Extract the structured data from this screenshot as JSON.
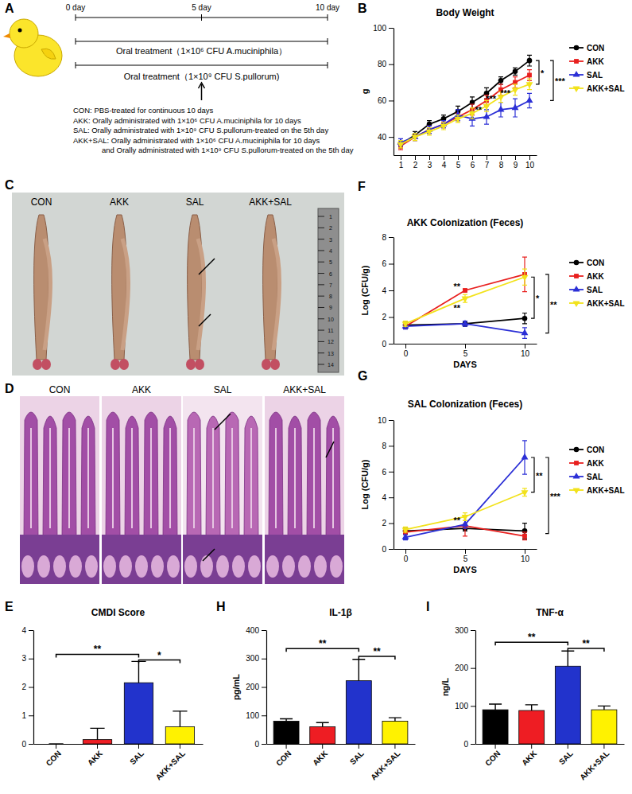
{
  "panel_labels": [
    "A",
    "B",
    "C",
    "D",
    "E",
    "F",
    "G",
    "H",
    "I"
  ],
  "diagram": {
    "timeline": [
      {
        "value": 0,
        "label": "0 day"
      },
      {
        "value": 5,
        "label": "5 day"
      },
      {
        "value": 10,
        "label": "10 day"
      }
    ],
    "treatments": [
      "Oral treatment（1×10⁶ CFU A.muciniphila）",
      "Oral treatment（1×10⁹ CFU S.pullorum)"
    ],
    "groups": [
      [
        "CON: PBS-treated for continuous 10 days"
      ],
      [
        "AKK: Orally administrated with 1×10⁶ CFU A.muciniphila for 10 days"
      ],
      [
        "SAL: Orally administrated with 1×10⁹ CFU S.pullorum-treated on the 5th day"
      ],
      [
        "AKK+SAL: Orally administrated with 1×10⁶ CFU A.muciniphila for 10 days",
        "and Orally administrated with 1×10⁹ CFU S.pullorum-treated on the 5th day"
      ]
    ]
  },
  "photos": {
    "intestine": {
      "labels": [
        "CON",
        "AKK",
        "SAL",
        "AKK+SAL"
      ],
      "ruler_marks": [
        1,
        2,
        3,
        4,
        5,
        6,
        7,
        8,
        9,
        10,
        11,
        12,
        13,
        14
      ]
    },
    "histology": {
      "labels": [
        "CON",
        "AKK",
        "SAL",
        "AKK+SAL"
      ]
    }
  },
  "chart_data": [
    {
      "type": "line",
      "title": "Body Weight",
      "y_label": "g",
      "x": [
        1,
        2,
        3,
        4,
        5,
        6,
        7,
        8,
        9,
        10
      ],
      "xlim": [
        0.5,
        10.5
      ],
      "xticks": [
        1,
        2,
        3,
        4,
        5,
        6,
        7,
        8,
        9,
        10
      ],
      "ylim": [
        30,
        100
      ],
      "yticks": [
        40,
        60,
        80,
        100
      ],
      "legend": "right",
      "series": [
        {
          "name": "CON",
          "color": "#000000",
          "marker": "circle",
          "values": [
            36,
            41,
            47,
            50,
            54,
            59,
            64,
            71,
            76,
            82
          ],
          "errors": [
            2,
            2,
            2,
            2,
            3,
            3,
            3,
            2,
            2,
            3
          ]
        },
        {
          "name": "AKK",
          "color": "#e8201f",
          "marker": "square",
          "values": [
            35,
            40,
            44,
            47,
            51,
            55,
            60,
            66,
            70,
            74
          ],
          "errors": [
            2,
            2,
            2,
            2,
            2,
            3,
            3,
            3,
            3,
            3
          ]
        },
        {
          "name": "SAL",
          "color": "#2b2fd6",
          "marker": "triangle",
          "values": [
            37,
            40,
            44,
            47,
            52,
            50,
            51,
            55,
            56,
            60
          ],
          "errors": [
            2,
            2,
            2,
            2,
            3,
            4,
            4,
            4,
            5,
            4
          ]
        },
        {
          "name": "AKK+SAL",
          "color": "#f2e21b",
          "marker": "triangle-down",
          "values": [
            36,
            40,
            43,
            46,
            50,
            53,
            57,
            62,
            66,
            69
          ],
          "errors": [
            2,
            2,
            2,
            2,
            2,
            3,
            3,
            3,
            3,
            3
          ]
        }
      ],
      "annotations": [
        {
          "text": "**",
          "x": 7,
          "y": 55
        },
        {
          "text": "***",
          "x": 8,
          "y": 61
        },
        {
          "text": "***",
          "x": 9,
          "y": 64
        },
        {
          "text": "*",
          "x": 10,
          "y_from": 82,
          "y_to": 69
        },
        {
          "text": "***",
          "x": 10,
          "y_from": 82,
          "y_to": 60
        }
      ]
    },
    {
      "type": "bar",
      "title": "CMDI Score",
      "categories": [
        "CON",
        "AKK",
        "SAL",
        "AKK+SAL"
      ],
      "values": [
        0,
        0.15,
        2.15,
        0.6
      ],
      "errors": [
        0,
        0.4,
        0.75,
        0.55
      ],
      "colors": [
        "#000000",
        "#ee1d23",
        "#2233cc",
        "#fff200"
      ],
      "ylim": [
        0,
        4
      ],
      "yticks": [
        0,
        1,
        2,
        3,
        4
      ],
      "annotations": [
        {
          "text": "**",
          "from": 0,
          "to": 2,
          "y": 3.15
        },
        {
          "text": "*",
          "from": 2,
          "to": 3,
          "y": 2.95
        }
      ]
    },
    {
      "type": "line",
      "title": "AKK Colonization (Feces)",
      "y_label": "Log (CFU/g)",
      "x_label": "DAYS",
      "x": [
        0,
        5,
        10
      ],
      "xlim": [
        -1,
        11
      ],
      "xticks": [
        0,
        5,
        10
      ],
      "ylim": [
        0,
        8
      ],
      "yticks": [
        0,
        2,
        4,
        6,
        8
      ],
      "legend": "right",
      "series": [
        {
          "name": "CON",
          "color": "#000000",
          "marker": "circle",
          "values": [
            1.4,
            1.5,
            1.9
          ],
          "errors": [
            0.2,
            0.2,
            0.4
          ]
        },
        {
          "name": "AKK",
          "color": "#e8201f",
          "marker": "square",
          "values": [
            1.3,
            4.0,
            5.2
          ],
          "errors": [
            0.1,
            0.1,
            1.3
          ]
        },
        {
          "name": "SAL",
          "color": "#2b2fd6",
          "marker": "triangle",
          "values": [
            1.3,
            1.5,
            0.8
          ],
          "errors": [
            0.2,
            0.2,
            0.4
          ]
        },
        {
          "name": "AKK+SAL",
          "color": "#f2e21b",
          "marker": "triangle-down",
          "values": [
            1.5,
            3.4,
            5.0
          ],
          "errors": [
            0.2,
            0.3,
            0.6
          ]
        }
      ],
      "annotations": [
        {
          "text": "**",
          "x": 5,
          "y": 4.3
        },
        {
          "text": "**",
          "x": 5,
          "y": 2.7
        },
        {
          "text": "*",
          "x": 10,
          "y_from": 5.0,
          "y_to": 1.9
        },
        {
          "text": "**",
          "x": 10,
          "y_from": 5.2,
          "y_to": 0.8
        }
      ]
    },
    {
      "type": "line",
      "title": "SAL Colonization (Feces)",
      "y_label": "Log (CFU/g)",
      "x_label": "DAYS",
      "x": [
        0,
        5,
        10
      ],
      "xlim": [
        -1,
        11
      ],
      "xticks": [
        0,
        5,
        10
      ],
      "ylim": [
        0,
        10
      ],
      "yticks": [
        0,
        2,
        4,
        6,
        8,
        10
      ],
      "legend": "right",
      "series": [
        {
          "name": "CON",
          "color": "#000000",
          "marker": "circle",
          "values": [
            1.4,
            1.6,
            1.4
          ],
          "errors": [
            0.2,
            0.2,
            0.6
          ]
        },
        {
          "name": "AKK",
          "color": "#e8201f",
          "marker": "square",
          "values": [
            1.3,
            1.8,
            1.0
          ],
          "errors": [
            0.2,
            0.8,
            0.3
          ]
        },
        {
          "name": "SAL",
          "color": "#2b2fd6",
          "marker": "triangle",
          "values": [
            0.9,
            1.9,
            7.1
          ],
          "errors": [
            0.2,
            0.3,
            1.3
          ]
        },
        {
          "name": "AKK+SAL",
          "color": "#f2e21b",
          "marker": "triangle-down",
          "values": [
            1.5,
            2.5,
            4.4
          ],
          "errors": [
            0.2,
            0.3,
            0.3
          ]
        }
      ],
      "annotations": [
        {
          "text": "**",
          "x": 5,
          "y": 2.2
        },
        {
          "text": "**",
          "x": 10,
          "y_from": 7.1,
          "y_to": 4.4
        },
        {
          "text": "***",
          "x": 10,
          "y_from": 7.1,
          "y_to": 1.2
        }
      ]
    },
    {
      "type": "bar",
      "title": "IL-1β",
      "y_label": "pg/mL",
      "categories": [
        "CON",
        "AKK",
        "SAL",
        "AKK+SAL"
      ],
      "values": [
        80,
        60,
        222,
        80
      ],
      "errors": [
        8,
        15,
        75,
        12
      ],
      "colors": [
        "#000000",
        "#ee1d23",
        "#2233cc",
        "#fff200"
      ],
      "ylim": [
        0,
        400
      ],
      "yticks": [
        0,
        100,
        200,
        300,
        400
      ],
      "annotations": [
        {
          "text": "**",
          "from": 0,
          "to": 2,
          "y": 335
        },
        {
          "text": "**",
          "from": 2,
          "to": 3,
          "y": 308
        }
      ]
    },
    {
      "type": "bar",
      "title": "TNF-α",
      "y_label": "ng/L",
      "categories": [
        "CON",
        "AKK",
        "SAL",
        "AKK+SAL"
      ],
      "values": [
        90,
        88,
        205,
        90
      ],
      "errors": [
        15,
        15,
        40,
        10
      ],
      "colors": [
        "#000000",
        "#ee1d23",
        "#2233cc",
        "#fff200"
      ],
      "ylim": [
        0,
        300
      ],
      "yticks": [
        0,
        100,
        200,
        300
      ],
      "annotations": [
        {
          "text": "**",
          "from": 0,
          "to": 2,
          "y": 268
        },
        {
          "text": "**",
          "from": 2,
          "to": 3,
          "y": 252
        }
      ]
    }
  ]
}
